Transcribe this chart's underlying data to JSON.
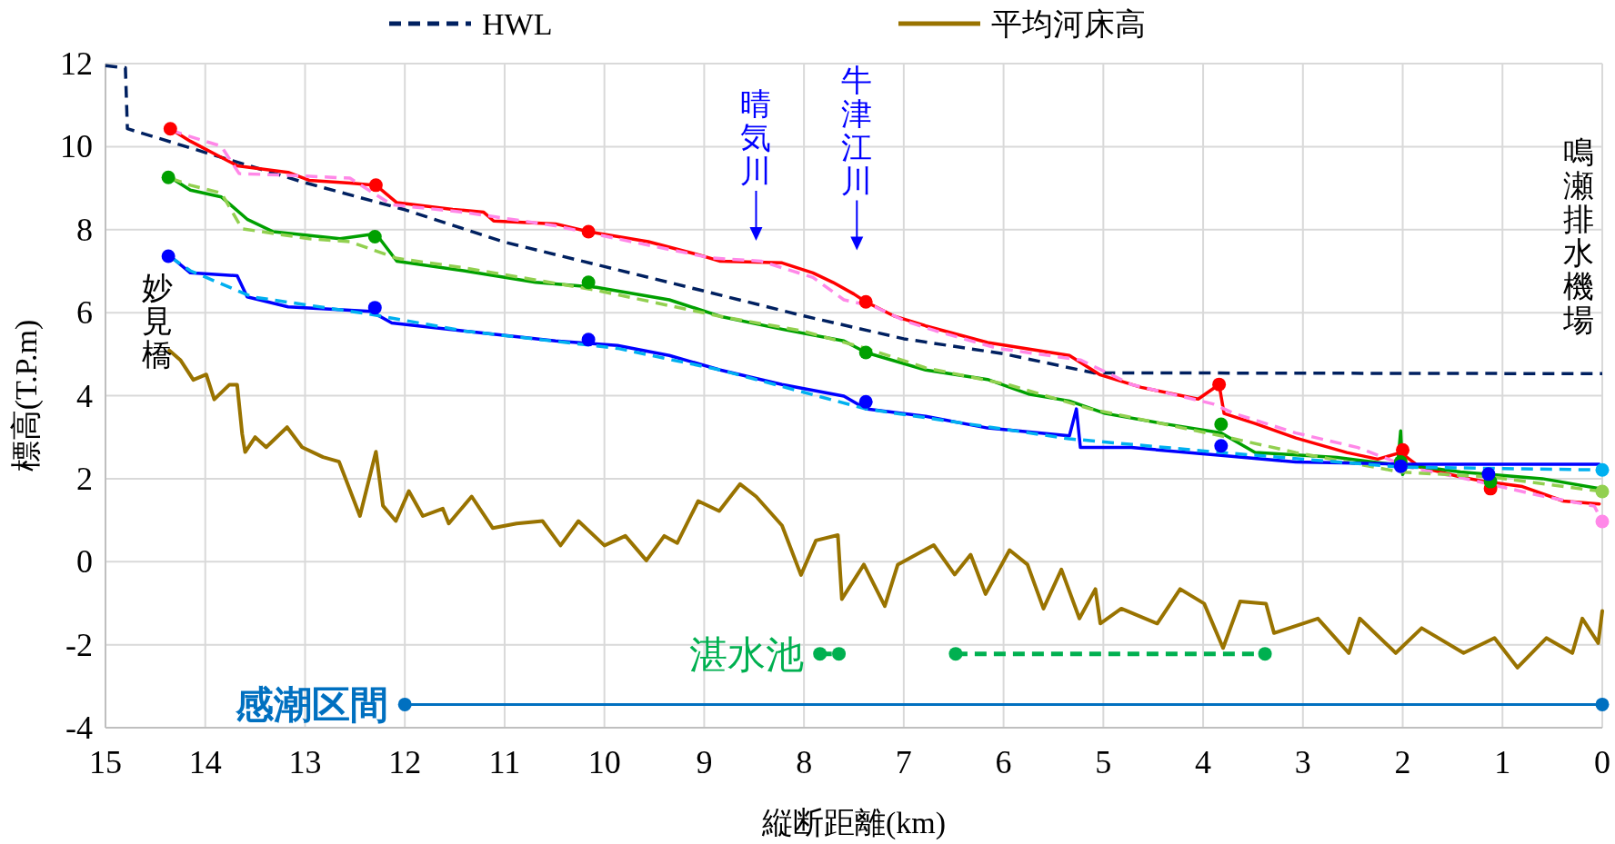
{
  "chart_data": {
    "type": "line",
    "xlabel": "縦断距離(km)",
    "ylabel": "標高(T.P.m)",
    "xlim": [
      15,
      0
    ],
    "xticks": [
      15,
      14,
      13,
      12,
      11,
      10,
      9,
      8,
      7,
      6,
      5,
      4,
      3,
      2,
      1,
      0
    ],
    "ylim": [
      -4,
      12
    ],
    "yticks": [
      -4,
      -2,
      0,
      2,
      4,
      6,
      8,
      10,
      12
    ],
    "grid": true,
    "legend": "top",
    "series": [
      {
        "name": "HWL",
        "type": "line",
        "color": "#002060",
        "line_style": "dashed",
        "x": [
          15,
          14.8,
          14.78,
          14,
          13,
          12,
          11,
          10,
          9,
          8,
          7,
          6,
          5.1,
          0
        ],
        "values": [
          11.95,
          11.9,
          10.43,
          9.86,
          9.13,
          8.48,
          7.7,
          7.11,
          6.52,
          5.92,
          5.37,
          5.01,
          4.55,
          4.53
        ]
      },
      {
        "name": "平均河床高",
        "type": "line",
        "color": "#997300",
        "line_style": "solid",
        "x": [
          14.36,
          14.25,
          14.12,
          13.99,
          13.91,
          13.76,
          13.68,
          13.63,
          13.6,
          13.5,
          13.39,
          13.18,
          13.03,
          12.82,
          12.66,
          12.45,
          12.29,
          12.22,
          12.09,
          11.96,
          11.82,
          11.62,
          11.56,
          11.33,
          11.12,
          10.88,
          10.62,
          10.44,
          10.26,
          10.0,
          9.79,
          9.58,
          9.4,
          9.27,
          9.06,
          8.85,
          8.64,
          8.48,
          8.22,
          8.03,
          7.88,
          7.66,
          7.62,
          7.4,
          7.19,
          7.06,
          6.7,
          6.49,
          6.33,
          6.18,
          5.94,
          5.76,
          5.6,
          5.42,
          5.24,
          5.08,
          5.03,
          4.82,
          4.46,
          4.23,
          3.99,
          3.8,
          3.63,
          3.37,
          3.29,
          3.0,
          2.85,
          2.54,
          2.43,
          2.07,
          1.81,
          1.39,
          1.08,
          0.85,
          0.56,
          0.3,
          0.2,
          0.04,
          0.0
        ],
        "values": [
          5.09,
          4.86,
          4.38,
          4.51,
          3.91,
          4.26,
          4.26,
          3.08,
          2.64,
          3.0,
          2.76,
          3.24,
          2.76,
          2.52,
          2.41,
          1.1,
          2.65,
          1.35,
          0.98,
          1.7,
          1.1,
          1.28,
          0.92,
          1.57,
          0.81,
          0.92,
          0.98,
          0.39,
          0.98,
          0.39,
          0.62,
          0.03,
          0.62,
          0.45,
          1.46,
          1.22,
          1.87,
          1.57,
          0.87,
          -0.32,
          0.51,
          0.64,
          -0.9,
          -0.07,
          -1.07,
          -0.07,
          0.4,
          -0.31,
          0.17,
          -0.78,
          0.28,
          -0.07,
          -1.13,
          -0.19,
          -1.37,
          -0.66,
          -1.49,
          -1.13,
          -1.49,
          -0.66,
          -1.01,
          -2.08,
          -0.96,
          -1.01,
          -1.72,
          -1.49,
          -1.37,
          -2.2,
          -1.37,
          -2.2,
          -1.6,
          -2.2,
          -1.84,
          -2.55,
          -1.84,
          -2.2,
          -1.37,
          -1.96,
          -1.19
        ]
      },
      {
        "type": "line",
        "color": "#ff0000",
        "line_style": "solid",
        "x": [
          14.35,
          14.15,
          13.68,
          13.17,
          12.96,
          12.55,
          12.29,
          12.08,
          11.52,
          11.21,
          11.11,
          10.49,
          10.16,
          9.56,
          9.05,
          8.84,
          8.22,
          7.91,
          7.71,
          7.5,
          7.38,
          7.09,
          6.78,
          6.16,
          5.34,
          5.03,
          4.62,
          4.05,
          3.84,
          3.79,
          3.48,
          3.07,
          2.56,
          2.25,
          2.02,
          1.83,
          1.42,
          1.17,
          0.8,
          0.39,
          0.03
        ],
        "values": [
          10.43,
          10.13,
          9.54,
          9.38,
          9.19,
          9.12,
          9.07,
          8.65,
          8.49,
          8.42,
          8.21,
          8.14,
          7.95,
          7.71,
          7.39,
          7.24,
          7.2,
          6.96,
          6.73,
          6.45,
          6.26,
          5.91,
          5.68,
          5.28,
          4.97,
          4.5,
          4.2,
          3.92,
          4.27,
          3.57,
          3.33,
          2.98,
          2.63,
          2.47,
          2.63,
          2.28,
          2.04,
          1.93,
          1.81,
          1.46,
          1.39
        ]
      },
      {
        "type": "line",
        "color": "#ff88e8",
        "line_style": "dashed",
        "x": [
          14.35,
          14.15,
          13.84,
          13.66,
          13.17,
          12.55,
          12.13,
          11.41,
          10.49,
          9.87,
          8.94,
          8.43,
          7.91,
          7.6,
          7.29,
          6.98,
          6.68,
          6.06,
          5.23,
          4.72,
          3.9,
          3.69,
          3.07,
          2.45,
          1.94,
          1.32,
          0.6,
          0.08,
          0
        ],
        "values": [
          10.4,
          10.24,
          10.01,
          9.35,
          9.31,
          9.24,
          8.6,
          8.42,
          8.09,
          7.78,
          7.32,
          7.24,
          6.85,
          6.31,
          6.14,
          5.79,
          5.56,
          5.14,
          4.86,
          4.27,
          3.8,
          3.57,
          3.1,
          2.75,
          2.28,
          1.97,
          1.58,
          1.34,
          0.97
        ]
      },
      {
        "type": "line",
        "color": "#00a000",
        "line_style": "solid",
        "x": [
          14.35,
          14.15,
          13.84,
          13.58,
          13.32,
          12.65,
          12.29,
          12.08,
          11.41,
          10.69,
          10.08,
          9.35,
          8.84,
          8.22,
          7.6,
          7.38,
          6.78,
          6.16,
          5.75,
          5.34,
          4.98,
          4.41,
          3.82,
          3.48,
          2.66,
          2.05,
          2.02,
          2.0,
          1.95,
          1.42,
          0.6,
          0.03
        ],
        "values": [
          9.26,
          8.95,
          8.79,
          8.25,
          7.95,
          7.78,
          7.9,
          7.24,
          7.01,
          6.73,
          6.61,
          6.31,
          5.91,
          5.6,
          5.32,
          5.04,
          4.62,
          4.39,
          4.04,
          3.87,
          3.57,
          3.33,
          3.1,
          2.63,
          2.51,
          2.33,
          3.15,
          2.1,
          2.33,
          2.16,
          2.0,
          1.76
        ]
      },
      {
        "type": "line",
        "color": "#92d050",
        "line_style": "dashed",
        "x": [
          14.35,
          14.15,
          13.84,
          13.63,
          12.96,
          12.55,
          12.08,
          11.41,
          10.08,
          8.84,
          8.02,
          7.38,
          6.78,
          5.96,
          5.13,
          3.82,
          3.07,
          2.02,
          1.11,
          0
        ],
        "values": [
          9.24,
          9.07,
          8.88,
          8.02,
          7.78,
          7.71,
          7.31,
          7.08,
          6.54,
          5.91,
          5.56,
          5.14,
          4.67,
          4.27,
          3.68,
          3.03,
          2.63,
          2.16,
          2.04,
          1.69
        ]
      },
      {
        "type": "line",
        "color": "#0000ff",
        "line_style": "solid",
        "x": [
          14.35,
          14.15,
          13.68,
          13.58,
          13.17,
          12.34,
          12.13,
          11.41,
          10.49,
          9.87,
          9.35,
          8.84,
          8.22,
          7.6,
          7.38,
          6.78,
          6.16,
          5.34,
          5.27,
          5.23,
          4.72,
          3.82,
          3.07,
          2.02,
          1.11,
          0.03
        ],
        "values": [
          7.36,
          6.96,
          6.89,
          6.38,
          6.14,
          6.03,
          5.75,
          5.56,
          5.32,
          5.21,
          4.97,
          4.62,
          4.27,
          3.99,
          3.68,
          3.5,
          3.22,
          3.03,
          3.68,
          2.75,
          2.75,
          2.56,
          2.4,
          2.35,
          2.35,
          2.35
        ]
      },
      {
        "type": "line",
        "color": "#00b0f0",
        "line_style": "dashed",
        "x": [
          14.35,
          14.15,
          13.53,
          12.34,
          11.41,
          9.87,
          8.84,
          7.38,
          5.34,
          3.82,
          2.02,
          0
        ],
        "values": [
          7.34,
          7.01,
          6.38,
          5.96,
          5.56,
          5.14,
          4.62,
          3.68,
          2.96,
          2.63,
          2.28,
          2.21
        ]
      },
      {
        "type": "scatter",
        "color": "#ff0000",
        "marker": "circle",
        "x": [
          14.35,
          12.29,
          10.16,
          7.38,
          3.84,
          2.0,
          1.12
        ],
        "values": [
          10.43,
          9.07,
          7.95,
          6.26,
          4.27,
          2.69,
          1.76
        ]
      },
      {
        "type": "scatter",
        "color": "#00a000",
        "marker": "circle",
        "x": [
          14.37,
          12.3,
          10.16,
          7.38,
          3.82,
          2.02,
          1.12
        ],
        "values": [
          9.26,
          7.83,
          6.73,
          5.04,
          3.31,
          2.4,
          1.93
        ]
      },
      {
        "type": "scatter",
        "color": "#0000ff",
        "marker": "circle",
        "x": [
          14.37,
          12.3,
          10.16,
          7.38,
          3.82,
          2.02,
          1.14
        ],
        "values": [
          7.36,
          6.12,
          5.35,
          3.85,
          2.79,
          2.3,
          2.11
        ]
      },
      {
        "type": "scatter",
        "color": "#ff88e8",
        "marker": "circle",
        "x": [
          0
        ],
        "values": [
          0.97
        ]
      },
      {
        "type": "scatter",
        "color": "#92d050",
        "marker": "circle",
        "x": [
          0
        ],
        "values": [
          1.69
        ]
      },
      {
        "type": "scatter",
        "color": "#00b0f0",
        "marker": "circle",
        "x": [
          0
        ],
        "values": [
          2.21
        ]
      },
      {
        "name": "湛水池",
        "type": "line",
        "color": "#00b050",
        "line_style": "dashed",
        "marker": "circle",
        "x": [
          7.84,
          7.65,
          7.0,
          6.48,
          3.38
        ],
        "values": [
          -2.22,
          -2.22,
          null,
          -2.22,
          -2.22
        ]
      },
      {
        "name": "感潮区間",
        "type": "line",
        "color": "#0070c0",
        "line_style": "solid",
        "marker": "circle",
        "x": [
          12,
          0
        ],
        "values": [
          -3.44,
          -3.44
        ]
      }
    ],
    "annotations": [
      "妙見橋",
      "晴気川",
      "牛津江川",
      "鳴瀬排水機場"
    ]
  }
}
